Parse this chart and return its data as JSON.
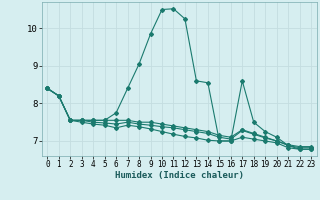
{
  "xlabel": "Humidex (Indice chaleur)",
  "background_color": "#d6eef0",
  "grid_color": "#c4dde0",
  "line_color": "#1a7a6e",
  "xlim": [
    -0.5,
    23.5
  ],
  "ylim": [
    6.6,
    10.7
  ],
  "yticks": [
    7,
    8,
    9,
    10
  ],
  "xticks": [
    0,
    1,
    2,
    3,
    4,
    5,
    6,
    7,
    8,
    9,
    10,
    11,
    12,
    13,
    14,
    15,
    16,
    17,
    18,
    19,
    20,
    21,
    22,
    23
  ],
  "series": [
    [
      8.4,
      8.2,
      7.55,
      7.55,
      7.55,
      7.55,
      7.55,
      7.55,
      7.5,
      7.5,
      7.45,
      7.4,
      7.35,
      7.3,
      7.25,
      7.15,
      7.1,
      7.3,
      7.2,
      7.1,
      7.0,
      6.9,
      6.85,
      6.85
    ],
    [
      8.4,
      8.2,
      7.55,
      7.55,
      7.55,
      7.55,
      7.75,
      8.4,
      9.05,
      9.85,
      10.5,
      10.52,
      10.25,
      8.6,
      8.55,
      7.0,
      7.0,
      8.6,
      7.5,
      7.25,
      7.1,
      6.88,
      6.78,
      6.78
    ],
    [
      8.4,
      8.2,
      7.55,
      7.55,
      7.5,
      7.48,
      7.45,
      7.5,
      7.45,
      7.42,
      7.38,
      7.35,
      7.3,
      7.25,
      7.2,
      7.1,
      7.05,
      7.28,
      7.18,
      7.08,
      7.0,
      6.88,
      6.82,
      6.82
    ],
    [
      8.4,
      8.2,
      7.55,
      7.5,
      7.45,
      7.42,
      7.35,
      7.42,
      7.38,
      7.32,
      7.25,
      7.18,
      7.12,
      7.08,
      7.02,
      7.0,
      7.0,
      7.1,
      7.05,
      7.0,
      6.95,
      6.82,
      6.78,
      6.78
    ]
  ]
}
